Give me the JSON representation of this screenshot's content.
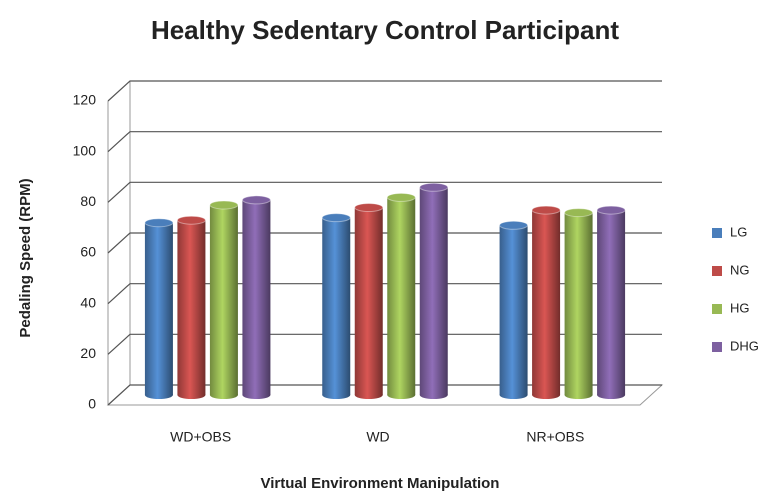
{
  "chart_data": {
    "type": "bar3d",
    "title": "Healthy Sedentary Control Participant",
    "xlabel": "Virtual Environment Manipulation",
    "ylabel": "Pedaling Speed (RPM)",
    "categories": [
      "WD+OBS",
      "WD",
      "NR+OBS"
    ],
    "series": [
      {
        "name": "LG",
        "color": "#4a7ebb",
        "values": [
          68,
          70,
          67
        ]
      },
      {
        "name": "NG",
        "color": "#be4b48",
        "values": [
          69,
          74,
          73
        ]
      },
      {
        "name": "HG",
        "color": "#98b954",
        "values": [
          75,
          78,
          72
        ]
      },
      {
        "name": "DHG",
        "color": "#7d60a0",
        "values": [
          77,
          82,
          73
        ]
      }
    ],
    "ylim": [
      0,
      120
    ],
    "yticks": [
      0,
      20,
      40,
      60,
      80,
      100,
      120
    ],
    "grid": true,
    "legend": "right"
  }
}
